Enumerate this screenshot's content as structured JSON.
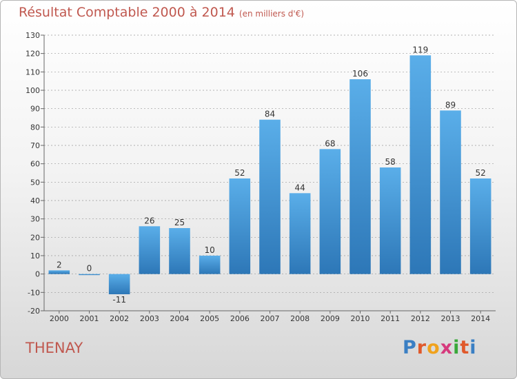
{
  "title": "Résultat Comptable 2000 à 2014",
  "subtitle": "(en milliers d'€)",
  "commune": "THENAY",
  "logo": {
    "letters": [
      "P",
      "r",
      "o",
      "x",
      "i",
      "t",
      "i"
    ],
    "colors": [
      "#3a7fc4",
      "#e0592b",
      "#f0a21d",
      "#d63a7d",
      "#3aa83a",
      "#e0592b",
      "#3a7fc4"
    ]
  },
  "colors": {
    "bar_top": "#5aaee9",
    "bar_bottom": "#2d77b7",
    "title": "#c0584f",
    "grid": "#999999"
  },
  "chart_data": {
    "type": "bar",
    "categories": [
      "2000",
      "2001",
      "2002",
      "2003",
      "2004",
      "2005",
      "2006",
      "2007",
      "2008",
      "2009",
      "2010",
      "2011",
      "2012",
      "2013",
      "2014"
    ],
    "values": [
      2,
      0,
      -11,
      26,
      25,
      10,
      52,
      84,
      44,
      68,
      106,
      58,
      119,
      89,
      52
    ],
    "title": "Résultat Comptable 2000 à 2014",
    "xlabel": "",
    "ylabel": "",
    "ylim": [
      -20,
      130
    ],
    "yticks": [
      -20,
      -10,
      0,
      10,
      20,
      30,
      40,
      50,
      60,
      70,
      80,
      90,
      100,
      110,
      120,
      130
    ],
    "grid": true,
    "legend": "none"
  }
}
